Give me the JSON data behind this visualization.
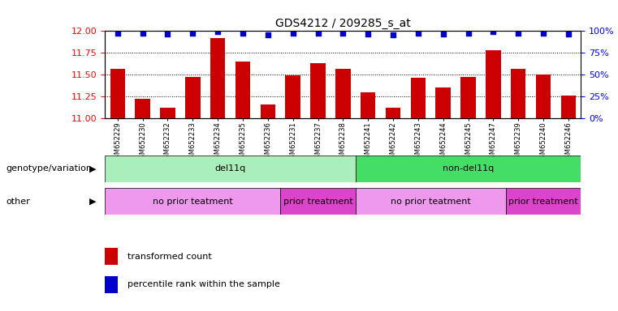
{
  "title": "GDS4212 / 209285_s_at",
  "samples": [
    "GSM652229",
    "GSM652230",
    "GSM652232",
    "GSM652233",
    "GSM652234",
    "GSM652235",
    "GSM652236",
    "GSM652231",
    "GSM652237",
    "GSM652238",
    "GSM652241",
    "GSM652242",
    "GSM652243",
    "GSM652244",
    "GSM652245",
    "GSM652247",
    "GSM652239",
    "GSM652240",
    "GSM652246"
  ],
  "bar_values": [
    11.57,
    11.22,
    11.12,
    11.47,
    11.92,
    11.65,
    11.16,
    11.49,
    11.63,
    11.57,
    11.3,
    11.12,
    11.46,
    11.35,
    11.47,
    11.78,
    11.57,
    11.5,
    11.26
  ],
  "percentile_values": [
    98,
    98,
    97,
    98,
    99,
    98,
    96,
    98,
    98,
    98,
    97,
    96,
    98,
    97,
    98,
    99,
    98,
    98,
    97
  ],
  "bar_color": "#cc0000",
  "dot_color": "#0000cc",
  "ylim_left": [
    11,
    12
  ],
  "ylim_right": [
    0,
    100
  ],
  "yticks_left": [
    11,
    11.25,
    11.5,
    11.75,
    12
  ],
  "yticks_right": [
    0,
    25,
    50,
    75,
    100
  ],
  "genotype_groups": [
    {
      "label": "del11q",
      "start": 0,
      "end": 10,
      "color": "#aaeebb"
    },
    {
      "label": "non-del11q",
      "start": 10,
      "end": 19,
      "color": "#44dd66"
    }
  ],
  "other_groups": [
    {
      "label": "no prior teatment",
      "start": 0,
      "end": 7,
      "color": "#ee99ee"
    },
    {
      "label": "prior treatment",
      "start": 7,
      "end": 10,
      "color": "#dd44cc"
    },
    {
      "label": "no prior teatment",
      "start": 10,
      "end": 16,
      "color": "#ee99ee"
    },
    {
      "label": "prior treatment",
      "start": 16,
      "end": 19,
      "color": "#dd44cc"
    }
  ],
  "legend_items": [
    {
      "label": "transformed count",
      "color": "#cc0000"
    },
    {
      "label": "percentile rank within the sample",
      "color": "#0000cc"
    }
  ],
  "annotation_labels": [
    "genotype/variation",
    "other"
  ],
  "grid_lines": [
    11.25,
    11.5,
    11.75
  ],
  "background_color": "#ffffff"
}
